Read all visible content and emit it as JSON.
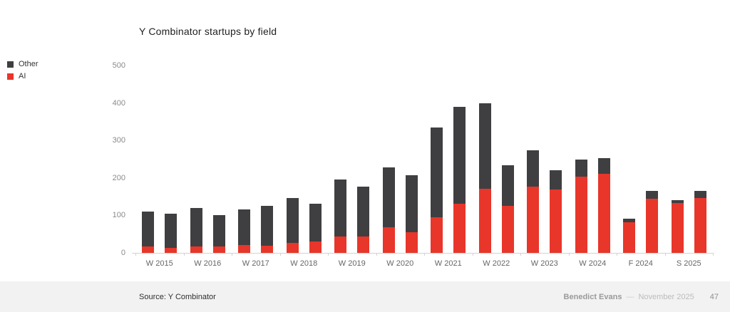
{
  "footer": {
    "source": "Source: Y Combinator",
    "author": "Benedict Evans",
    "separator": "—",
    "date": "November 2025",
    "page": "47"
  },
  "chart_data": {
    "type": "bar",
    "stacked": true,
    "title": "Y Combinator startups by field",
    "xlabel": "",
    "ylabel": "",
    "ylim": [
      0,
      500
    ],
    "yticks": [
      0,
      100,
      200,
      300,
      400,
      500
    ],
    "grid": false,
    "legend_position": "top-left",
    "legend": [
      {
        "name": "Other",
        "color": "#3f3f41"
      },
      {
        "name": "AI",
        "color": "#e8362a"
      }
    ],
    "groups": [
      {
        "label": "W 2015",
        "bars": [
          {
            "ai": 18,
            "other": 92
          },
          {
            "ai": 13,
            "other": 92
          }
        ]
      },
      {
        "label": "W 2016",
        "bars": [
          {
            "ai": 18,
            "other": 102
          },
          {
            "ai": 17,
            "other": 83
          }
        ]
      },
      {
        "label": "W 2017",
        "bars": [
          {
            "ai": 21,
            "other": 95
          },
          {
            "ai": 20,
            "other": 105
          }
        ]
      },
      {
        "label": "W 2018",
        "bars": [
          {
            "ai": 26,
            "other": 120
          },
          {
            "ai": 31,
            "other": 100
          }
        ]
      },
      {
        "label": "W 2019",
        "bars": [
          {
            "ai": 43,
            "other": 152
          },
          {
            "ai": 43,
            "other": 133
          }
        ]
      },
      {
        "label": "W 2020",
        "bars": [
          {
            "ai": 68,
            "other": 160
          },
          {
            "ai": 56,
            "other": 151
          }
        ]
      },
      {
        "label": "W 2021",
        "bars": [
          {
            "ai": 96,
            "other": 238
          },
          {
            "ai": 131,
            "other": 259
          }
        ]
      },
      {
        "label": "W 2022",
        "bars": [
          {
            "ai": 172,
            "other": 227
          },
          {
            "ai": 126,
            "other": 108
          }
        ]
      },
      {
        "label": "W 2023",
        "bars": [
          {
            "ai": 177,
            "other": 97
          },
          {
            "ai": 169,
            "other": 52
          }
        ]
      },
      {
        "label": "W 2024",
        "bars": [
          {
            "ai": 203,
            "other": 47
          },
          {
            "ai": 211,
            "other": 41
          }
        ]
      },
      {
        "label": "F 2024",
        "bars": [
          {
            "ai": 81,
            "other": 11
          },
          {
            "ai": 144,
            "other": 22
          }
        ]
      },
      {
        "label": "S 2025",
        "bars": [
          {
            "ai": 134,
            "other": 7
          },
          {
            "ai": 146,
            "other": 20
          }
        ]
      }
    ]
  }
}
